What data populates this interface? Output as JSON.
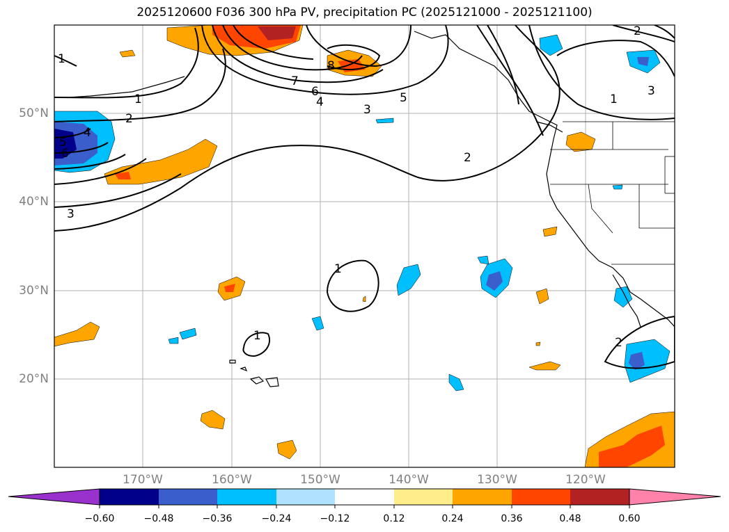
{
  "title": "2025120600 F036 300 hPa PV, precipitation PC (2025121000 - 2025121100)",
  "lat_labels": [
    "50°N",
    "40°N",
    "30°N",
    "20°N"
  ],
  "lon_labels": [
    "170°W",
    "160°W",
    "150°W",
    "140°W",
    "130°W",
    "120°W"
  ],
  "contour_labels": [
    "1",
    "2",
    "4",
    "5",
    "6",
    "3",
    "8",
    "7",
    "6",
    "4",
    "3",
    "5",
    "2",
    "1",
    "3",
    "2",
    "1",
    "1",
    "1",
    "2"
  ],
  "colorbar": {
    "ticks": [
      "−0.60",
      "−0.48",
      "−0.36",
      "−0.24",
      "−0.12",
      "0.12",
      "0.24",
      "0.36",
      "0.48",
      "0.60"
    ],
    "colors": [
      "#9932cc",
      "#00008b",
      "#3a5fcd",
      "#00bfff",
      "#b0e2ff",
      "#ffffff",
      "#ffec8b",
      "#ffa500",
      "#ff4500",
      "#b22222",
      "#ff82ab"
    ]
  }
}
